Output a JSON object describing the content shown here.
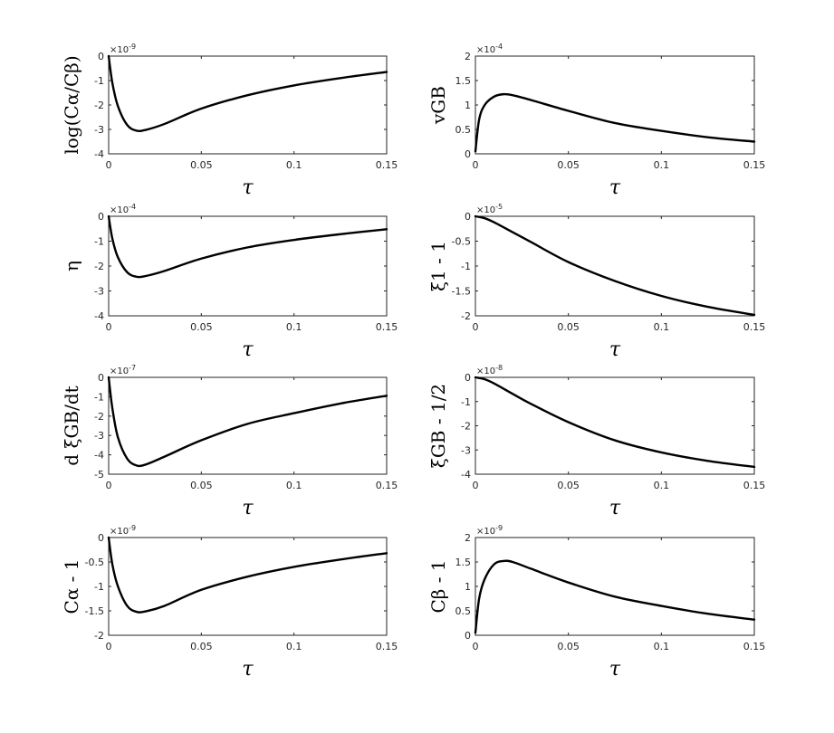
{
  "chart_data": [
    {
      "type": "line",
      "ylabel": "log(Cα/Cβ)",
      "xlabel": "τ",
      "exponent": "×10-9",
      "xlim": [
        0,
        0.15
      ],
      "ylim": [
        -4,
        0
      ],
      "xticks": [
        0,
        0.05,
        0.1,
        0.15
      ],
      "xtick_labels": [
        "0",
        "0.05",
        "0.1",
        "0.15"
      ],
      "yticks": [
        -4,
        -3,
        -2,
        -1,
        0
      ],
      "ytick_labels": [
        "-4",
        "-3",
        "-2",
        "-1",
        "0"
      ],
      "series": [
        {
          "x": [
            0,
            0.002,
            0.005,
            0.01,
            0.015,
            0.02,
            0.03,
            0.05,
            0.075,
            0.1,
            0.125,
            0.15
          ],
          "y": [
            0,
            -1.1,
            -2.05,
            -2.82,
            -3.05,
            -3.02,
            -2.78,
            -2.15,
            -1.6,
            -1.2,
            -0.9,
            -0.65
          ]
        }
      ]
    },
    {
      "type": "line",
      "ylabel": "vGB",
      "xlabel": "τ",
      "exponent": "×10-4",
      "xlim": [
        0,
        0.15
      ],
      "ylim": [
        0,
        2
      ],
      "xticks": [
        0,
        0.05,
        0.1,
        0.15
      ],
      "xtick_labels": [
        "0",
        "0.05",
        "0.1",
        "0.15"
      ],
      "yticks": [
        0,
        0.5,
        1,
        1.5,
        2
      ],
      "ytick_labels": [
        "0",
        "0.5",
        "1",
        "1.5",
        "2"
      ],
      "series": [
        {
          "x": [
            0,
            0.002,
            0.005,
            0.01,
            0.015,
            0.02,
            0.03,
            0.05,
            0.075,
            0.1,
            0.125,
            0.15
          ],
          "y": [
            0.05,
            0.7,
            1.0,
            1.17,
            1.22,
            1.2,
            1.1,
            0.88,
            0.63,
            0.47,
            0.34,
            0.25
          ]
        }
      ]
    },
    {
      "type": "line",
      "ylabel": "η",
      "xlabel": "τ",
      "exponent": "×10-4",
      "xlim": [
        0,
        0.15
      ],
      "ylim": [
        -4,
        0
      ],
      "xticks": [
        0,
        0.05,
        0.1,
        0.15
      ],
      "xtick_labels": [
        "0",
        "0.05",
        "0.1",
        "0.15"
      ],
      "yticks": [
        -4,
        -3,
        -2,
        -1,
        0
      ],
      "ytick_labels": [
        "-4",
        "-3",
        "-2",
        "-1",
        "0"
      ],
      "series": [
        {
          "x": [
            0,
            0.002,
            0.005,
            0.01,
            0.015,
            0.02,
            0.03,
            0.05,
            0.075,
            0.1,
            0.125,
            0.15
          ],
          "y": [
            0,
            -0.9,
            -1.65,
            -2.25,
            -2.43,
            -2.4,
            -2.2,
            -1.7,
            -1.25,
            -0.95,
            -0.72,
            -0.52
          ]
        }
      ]
    },
    {
      "type": "line",
      "ylabel": "ξ1 - 1",
      "xlabel": "τ",
      "exponent": "×10-5",
      "xlim": [
        0,
        0.15
      ],
      "ylim": [
        -2,
        0
      ],
      "xticks": [
        0,
        0.05,
        0.1,
        0.15
      ],
      "xtick_labels": [
        "0",
        "0.05",
        "0.1",
        "0.15"
      ],
      "yticks": [
        -2,
        -1.5,
        -1,
        -0.5,
        0
      ],
      "ytick_labels": [
        "-2",
        "-1.5",
        "-1",
        "-0.5",
        "0"
      ],
      "series": [
        {
          "x": [
            0,
            0.005,
            0.01,
            0.02,
            0.03,
            0.05,
            0.075,
            0.1,
            0.125,
            0.15
          ],
          "y": [
            0,
            -0.04,
            -0.12,
            -0.32,
            -0.52,
            -0.92,
            -1.3,
            -1.6,
            -1.82,
            -1.98
          ]
        }
      ]
    },
    {
      "type": "line",
      "ylabel": "d ξGB/dt",
      "xlabel": "τ",
      "exponent": "×10-7",
      "xlim": [
        0,
        0.15
      ],
      "ylim": [
        -5,
        0
      ],
      "xticks": [
        0,
        0.05,
        0.1,
        0.15
      ],
      "xtick_labels": [
        "0",
        "0.05",
        "0.1",
        "0.15"
      ],
      "yticks": [
        -5,
        -4,
        -3,
        -2,
        -1,
        0
      ],
      "ytick_labels": [
        "-5",
        "-4",
        "-3",
        "-2",
        "-1",
        "0"
      ],
      "series": [
        {
          "x": [
            0,
            0.002,
            0.005,
            0.01,
            0.015,
            0.02,
            0.03,
            0.05,
            0.075,
            0.1,
            0.125,
            0.15
          ],
          "y": [
            0,
            -1.6,
            -3.1,
            -4.2,
            -4.55,
            -4.5,
            -4.1,
            -3.25,
            -2.4,
            -1.85,
            -1.35,
            -0.95
          ]
        }
      ]
    },
    {
      "type": "line",
      "ylabel": "ξGB - 1/2",
      "xlabel": "τ",
      "exponent": "×10-8",
      "xlim": [
        0,
        0.15
      ],
      "ylim": [
        -4,
        0
      ],
      "xticks": [
        0,
        0.05,
        0.1,
        0.15
      ],
      "xtick_labels": [
        "0",
        "0.05",
        "0.1",
        "0.15"
      ],
      "yticks": [
        -4,
        -3,
        -2,
        -1,
        0
      ],
      "ytick_labels": [
        "-4",
        "-3",
        "-2",
        "-1",
        "0"
      ],
      "series": [
        {
          "x": [
            0,
            0.005,
            0.01,
            0.02,
            0.03,
            0.05,
            0.075,
            0.1,
            0.125,
            0.15
          ],
          "y": [
            0,
            -0.08,
            -0.25,
            -0.68,
            -1.1,
            -1.85,
            -2.6,
            -3.1,
            -3.45,
            -3.7
          ]
        }
      ]
    },
    {
      "type": "line",
      "ylabel": "Cα - 1",
      "xlabel": "τ",
      "exponent": "×10-9",
      "xlim": [
        0,
        0.15
      ],
      "ylim": [
        -2,
        0
      ],
      "xticks": [
        0,
        0.05,
        0.1,
        0.15
      ],
      "xtick_labels": [
        "0",
        "0.05",
        "0.1",
        "0.15"
      ],
      "yticks": [
        -2,
        -1.5,
        -1,
        -0.5,
        0
      ],
      "ytick_labels": [
        "-2",
        "-1.5",
        "-1",
        "-0.5",
        "0"
      ],
      "series": [
        {
          "x": [
            0,
            0.002,
            0.005,
            0.01,
            0.015,
            0.02,
            0.03,
            0.05,
            0.075,
            0.1,
            0.125,
            0.15
          ],
          "y": [
            0,
            -0.55,
            -1.0,
            -1.4,
            -1.52,
            -1.51,
            -1.4,
            -1.07,
            -0.8,
            -0.6,
            -0.45,
            -0.32
          ]
        }
      ]
    },
    {
      "type": "line",
      "ylabel": "Cβ - 1",
      "xlabel": "τ",
      "exponent": "×10-9",
      "xlim": [
        0,
        0.15
      ],
      "ylim": [
        0,
        2
      ],
      "xticks": [
        0,
        0.05,
        0.1,
        0.15
      ],
      "xtick_labels": [
        "0",
        "0.05",
        "0.1",
        "0.15"
      ],
      "yticks": [
        0,
        0.5,
        1,
        1.5,
        2
      ],
      "ytick_labels": [
        "0",
        "0.5",
        "1",
        "1.5",
        "2"
      ],
      "series": [
        {
          "x": [
            0,
            0.002,
            0.005,
            0.01,
            0.015,
            0.02,
            0.03,
            0.05,
            0.075,
            0.1,
            0.125,
            0.15
          ],
          "y": [
            0.05,
            0.75,
            1.15,
            1.45,
            1.52,
            1.5,
            1.36,
            1.08,
            0.79,
            0.6,
            0.44,
            0.32
          ]
        }
      ]
    }
  ]
}
